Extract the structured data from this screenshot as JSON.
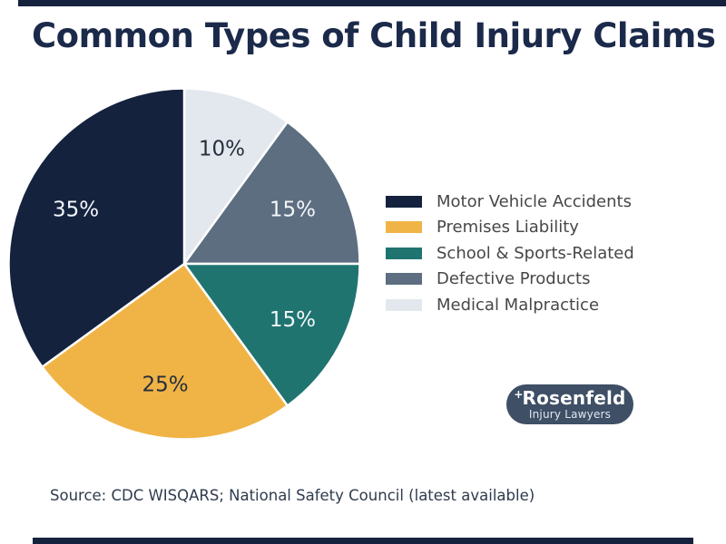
{
  "page": {
    "title": "Common Types of Child Injury Claims",
    "source_note": "Source: CDC WISQARS; National Safety Council (latest available)",
    "background_color": "#FFFFFF",
    "accent_bar_color": "#14223E",
    "title_color": "#1B2A4A"
  },
  "logo": {
    "mark": "+",
    "name": "Rosenfeld",
    "tagline": "Injury Lawyers",
    "badge_color": "#3E4F66",
    "text_color": "#FFFFFF"
  },
  "chart_data": {
    "type": "pie",
    "title": "Common Types of Child Injury Claims",
    "direction": "clockwise",
    "start_angle_deg": 0,
    "legend_position": "right",
    "slice_border_color": "#FFFFFF",
    "segments": [
      {
        "label": "Motor Vehicle Accidents",
        "value": 35,
        "display": "35%",
        "color": "#14223E",
        "label_color": "#F3F6FA"
      },
      {
        "label": "Premises Liability",
        "value": 25,
        "display": "25%",
        "color": "#F0B446",
        "label_color": "#262F3C"
      },
      {
        "label": "School & Sports-Related",
        "value": 15,
        "display": "15%",
        "color": "#1F7470",
        "label_color": "#F3F6FA"
      },
      {
        "label": "Defective Products",
        "value": 15,
        "display": "15%",
        "color": "#5C6E80",
        "label_color": "#F3F6FA"
      },
      {
        "label": "Medical Malpractice",
        "value": 10,
        "display": "10%",
        "color": "#E3E8EE",
        "label_color": "#262F3C"
      }
    ]
  }
}
